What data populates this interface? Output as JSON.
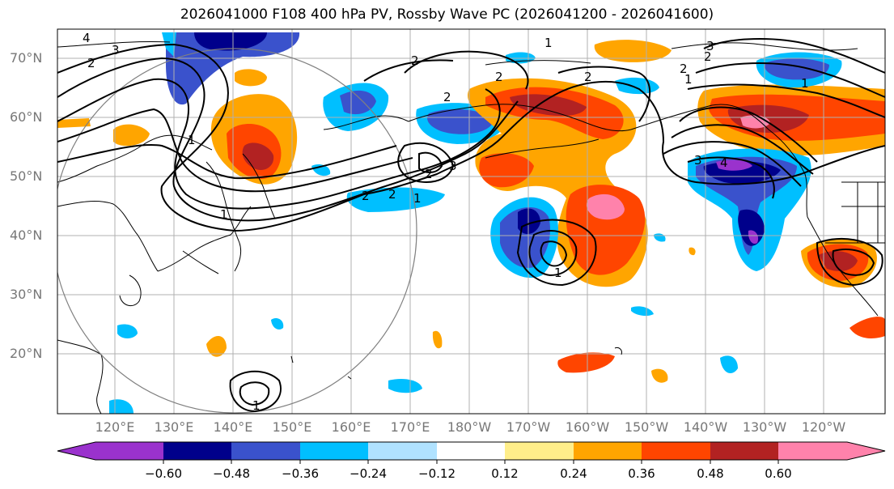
{
  "figure": {
    "title": "2026041000 F108 400 hPa PV, Rossby Wave PC (2026041200 - 2026041600)"
  },
  "axes": {
    "lat_labels": [
      "70°N",
      "60°N",
      "50°N",
      "40°N",
      "30°N",
      "20°N"
    ],
    "lon_labels": [
      "120°E",
      "130°E",
      "140°E",
      "150°E",
      "160°E",
      "170°E",
      "180°W",
      "170°W",
      "160°W",
      "150°W",
      "140°W",
      "130°W",
      "120°W"
    ]
  },
  "colorbar": {
    "ticks": [
      "−0.60",
      "−0.48",
      "−0.36",
      "−0.24",
      "−0.12",
      "0.12",
      "0.24",
      "0.36",
      "0.48",
      "0.60"
    ],
    "colors": [
      "#9a32cd",
      "#00008b",
      "#3a52cc",
      "#00bfff",
      "#b0e2ff",
      "#ffffff",
      "#ffee8a",
      "#ffa500",
      "#ff4500",
      "#b22222",
      "#ff82ab"
    ]
  },
  "contour_labels": [
    "4",
    "3",
    "2",
    "2",
    "2",
    "1",
    "1",
    "2",
    "2",
    "3",
    "2",
    "2",
    "1",
    "1",
    "2",
    "2",
    "3",
    "2",
    "1",
    "1",
    "4",
    "1",
    "3",
    "1"
  ]
}
